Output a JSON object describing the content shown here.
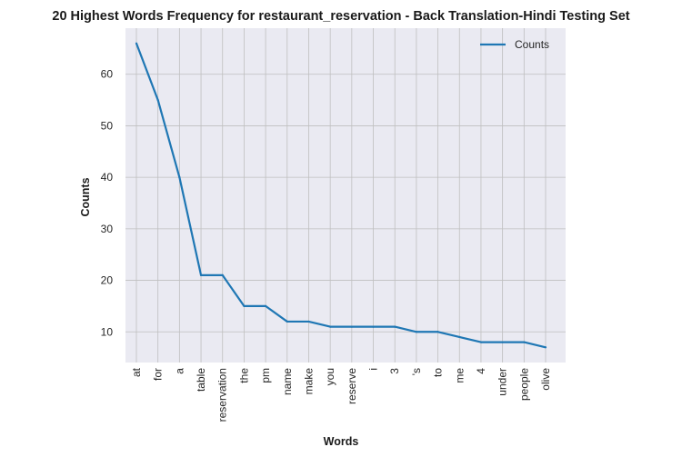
{
  "chart_data": {
    "type": "line",
    "title": "20 Highest Words Frequency for restaurant_reservation - Back Translation-Hindi Testing Set",
    "xlabel": "Words",
    "ylabel": "Counts",
    "categories": [
      "at",
      "for",
      "a",
      "table",
      "reservation",
      "the",
      "pm",
      "name",
      "make",
      "you",
      "reserve",
      "i",
      "3",
      "'s",
      "to",
      "me",
      "4",
      "under",
      "people",
      "olive"
    ],
    "series": [
      {
        "name": "Counts",
        "values": [
          66,
          55,
          40,
          21,
          21,
          15,
          15,
          12,
          12,
          11,
          11,
          11,
          11,
          10,
          10,
          9,
          8,
          8,
          8,
          7
        ]
      }
    ],
    "ylim": [
      4.05,
      68.95
    ],
    "yticks": [
      10,
      20,
      30,
      40,
      50,
      60
    ],
    "grid": true,
    "legend_position": "top-right",
    "colors": {
      "line": "#1f77b4",
      "background": "#eaeaf2",
      "grid": "#bfbfbf"
    }
  }
}
